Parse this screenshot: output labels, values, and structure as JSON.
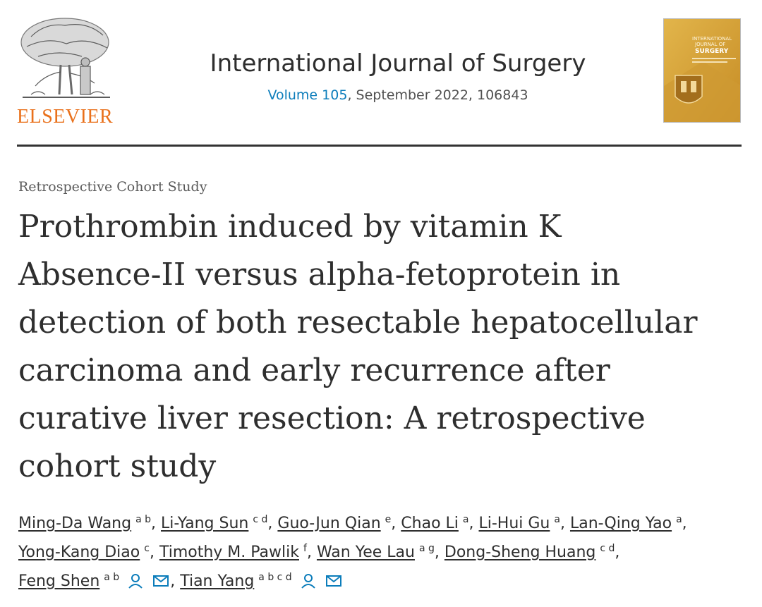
{
  "publisher": {
    "name": "ELSEVIER"
  },
  "journal": {
    "title": "International Journal of Surgery",
    "volume_label": "Volume 105",
    "issue_rest": ", September 2022, 106843",
    "cover_lines": [
      "INTERNATIONAL",
      "JOURNAL OF",
      "SURGERY"
    ]
  },
  "article": {
    "type": "Retrospective Cohort Study",
    "title_lines": [
      "Prothrombin induced by vitamin K",
      "Absence-II versus alpha-fetoprotein in",
      "detection of both resectable hepatocellular",
      "carcinoma and early recurrence after",
      "curative liver resection: A retrospective",
      "cohort study"
    ]
  },
  "authors": [
    {
      "name": "Ming-Da Wang",
      "aff": "a b",
      "sep": ", "
    },
    {
      "name": "Li-Yang Sun",
      "aff": "c d",
      "sep": ", "
    },
    {
      "name": "Guo-Jun Qian",
      "aff": "e",
      "sep": ", "
    },
    {
      "name": "Chao Li",
      "aff": "a",
      "sep": ", "
    },
    {
      "name": "Li-Hui Gu",
      "aff": "a",
      "sep": ", "
    },
    {
      "name": "Lan-Qing Yao",
      "aff": "a",
      "sep": ", "
    },
    {
      "name": "Yong-Kang Diao",
      "aff": "c",
      "sep": ", "
    },
    {
      "name": "Timothy M. Pawlik",
      "aff": "f",
      "sep": ", "
    },
    {
      "name": "Wan Yee Lau",
      "aff": "a g",
      "sep": ", "
    },
    {
      "name": "Dong-Sheng Huang",
      "aff": "c d",
      "sep": ","
    },
    {
      "name": "Feng Shen",
      "aff": "a b",
      "sep": ", "
    },
    {
      "name": "Tian Yang",
      "aff": "a b c d",
      "sep": ""
    }
  ],
  "colors": {
    "link": "#0c7dbb",
    "brand_orange": "#e9711c",
    "text": "#2e2e2e"
  },
  "icons": {
    "author_icon": "person-icon",
    "email_icon": "envelope-icon"
  }
}
